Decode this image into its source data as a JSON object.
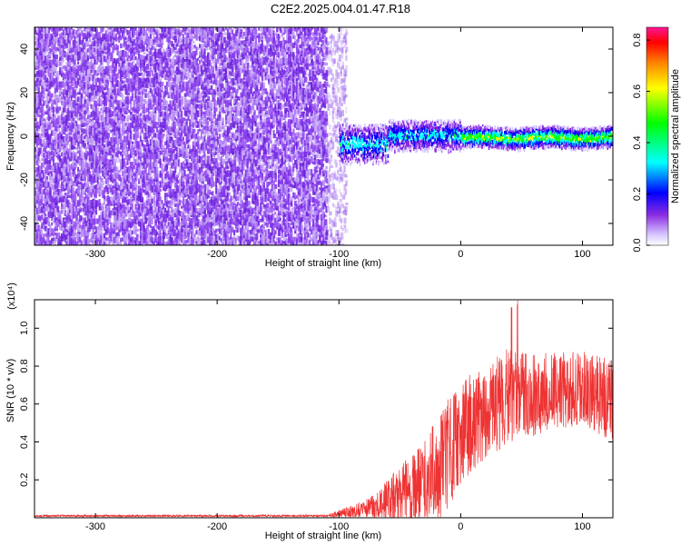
{
  "title": "C2E2.2025.004.01.47.R18",
  "chart_data": [
    {
      "type": "heatmap",
      "xlabel": "Height of straight line (km)",
      "ylabel": "Frequency (Hz)",
      "xlim": [
        -350,
        125
      ],
      "ylim": [
        -50,
        50
      ],
      "x_ticks": [
        -300,
        -200,
        -100,
        0,
        100
      ],
      "y_ticks": [
        -40,
        -20,
        0,
        20,
        40
      ],
      "colorbar": {
        "label": "Normalized spectral amplitude",
        "range": [
          0.0,
          0.85
        ],
        "ticks": [
          "0.0",
          "0.2",
          "0.4",
          "0.6",
          "0.8"
        ],
        "colors": [
          "#ffffff",
          "#d6c4ff",
          "#8a2be2",
          "#0000ff",
          "#00ffff",
          "#00ff00",
          "#ffff00",
          "#ff7f00",
          "#ff0000",
          "#ff1493"
        ]
      },
      "regions": [
        {
          "x_range": [
            -350,
            -95
          ],
          "freq_range": [
            -50,
            50
          ],
          "amplitude": 0.05,
          "description_color": "#7a2ee6"
        },
        {
          "x_range": [
            -95,
            125
          ],
          "freq_range": [
            -10,
            10
          ],
          "amplitude": 0.35,
          "description_color": "#2020ff"
        },
        {
          "x_range": [
            0,
            125
          ],
          "freq_range": [
            -4,
            4
          ],
          "amplitude": 0.55,
          "description_color": "#40ff80"
        }
      ]
    },
    {
      "type": "line",
      "xlabel": "Height of straight line (km)",
      "ylabel": "SNR (10 * v/v)",
      "y_multiplier": "(x10⁴)",
      "xlim": [
        -350,
        125
      ],
      "ylim": [
        0,
        1.15
      ],
      "x_ticks": [
        -300,
        -200,
        -100,
        0,
        100
      ],
      "y_ticks": [
        0.2,
        0.4,
        0.6,
        0.8,
        1.0
      ],
      "series": [
        {
          "color": "#ee3333",
          "envelope_x": [
            -350,
            -110,
            -100,
            -80,
            -70,
            -60,
            -50,
            -40,
            -30,
            -20,
            -10,
            0,
            20,
            40,
            60,
            80,
            100,
            125
          ],
          "envelope_mean": [
            0.01,
            0.01,
            0.02,
            0.04,
            0.06,
            0.08,
            0.12,
            0.15,
            0.18,
            0.25,
            0.35,
            0.45,
            0.55,
            0.65,
            0.65,
            0.67,
            0.68,
            0.62
          ],
          "envelope_amp": [
            0.005,
            0.005,
            0.02,
            0.05,
            0.08,
            0.12,
            0.16,
            0.18,
            0.22,
            0.28,
            0.3,
            0.28,
            0.25,
            0.25,
            0.22,
            0.2,
            0.2,
            0.22
          ]
        }
      ]
    }
  ]
}
